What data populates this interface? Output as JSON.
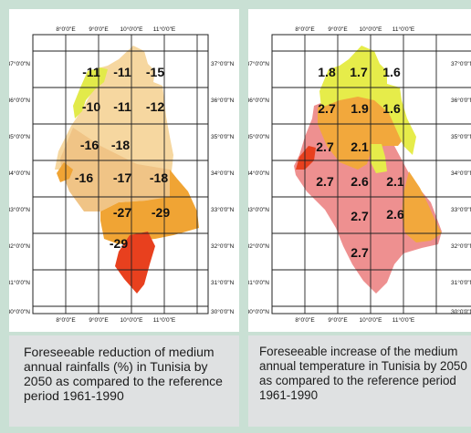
{
  "maps": [
    {
      "lon_ticks": [
        "8°0'0\"E",
        "9°0'0\"E",
        "10°0'0\"E",
        "11°0'0\"E"
      ],
      "lat_ticks": [
        "37°0'0\"N",
        "36°0'0\"N",
        "35°0'0\"N",
        "34°0'0\"N",
        "33°0'0\"N",
        "32°0'0\"N",
        "31°0'0\"N",
        "30°0'0\"N"
      ],
      "values": [
        "-11",
        "-11",
        "-15",
        "-10",
        "-11",
        "-12",
        "-16",
        "-18",
        "-16",
        "-17",
        "-18",
        "-27",
        "-29",
        "-29"
      ],
      "colors": {
        "lightest": "#f6d7a0",
        "light": "#f0c486",
        "yellow": "#e2ea4a",
        "orange": "#f0a434",
        "red": "#e8401e"
      },
      "caption": "Foreseeable reduction of medium annual rainfalls (%) in Tunisia by 2050 as compared to the reference period 1961-1990"
    },
    {
      "lon_ticks": [
        "8°0'0\"E",
        "9°0'0\"E",
        "10°0'0\"E",
        "11°0'0\"E"
      ],
      "lat_ticks": [
        "37°0'0\"N",
        "36°0'0\"N",
        "35°0'0\"N",
        "34°0'0\"N",
        "33°0'0\"N",
        "32°0'0\"N",
        "31°0'0\"N",
        "30°0'0\"N"
      ],
      "values": [
        "1.8",
        "1.7",
        "1.6",
        "2.7",
        "1.9",
        "1.6",
        "2.7",
        "2.1",
        "2.7",
        "2.6",
        "2.1",
        "2.7",
        "2.6",
        "2.7"
      ],
      "colors": {
        "yellow": "#e6ec4a",
        "orange": "#f2a83c",
        "pink": "#ee9090",
        "red": "#e8401e"
      },
      "caption": "Foreseeable increase of the medium annual temperature in Tunisia by 2050 as compared to the reference period 1961-1990"
    }
  ]
}
